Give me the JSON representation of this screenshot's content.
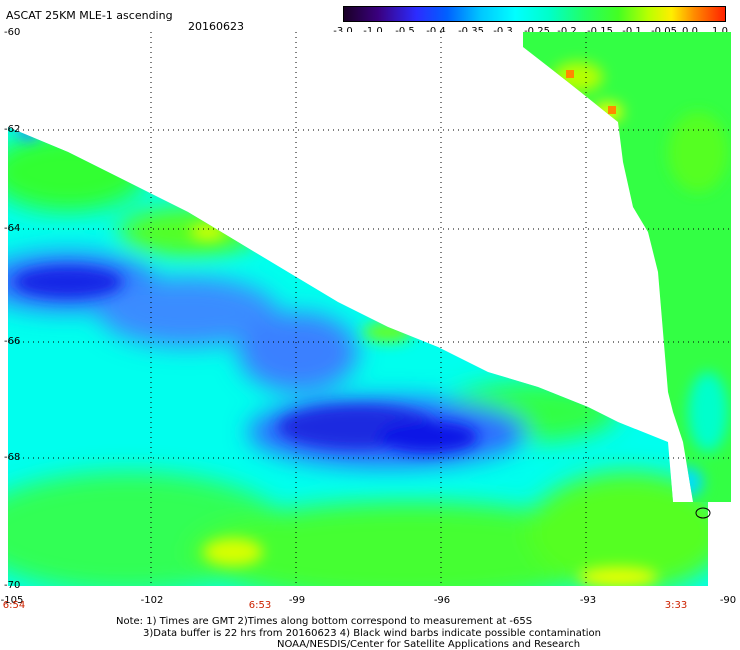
{
  "header": {
    "title": "ASCAT 25KM MLE-1 ascending",
    "date": "20160623"
  },
  "colorbar": {
    "labels": [
      "-3.0",
      "-1.0",
      "-0.5",
      "-0.4",
      "-0.35",
      "-0.3",
      "-0.25",
      "-0.2",
      "-0.15",
      "-0.1",
      "-0.05",
      "0.0",
      "1.0"
    ]
  },
  "axes": {
    "lat_labels": [
      "-60",
      "-62",
      "-64",
      "-66",
      "-68",
      "-70"
    ],
    "lon_labels": [
      "-105",
      "-102",
      "-99",
      "-96",
      "-93",
      "-90"
    ],
    "time_labels": [
      "6:54",
      "6:53",
      "3:33"
    ]
  },
  "notes": {
    "line1": "Note: 1) Times are GMT 2)Times along bottom correspond to measurement at -65S",
    "line2": "3)Data buffer is 22 hrs from 20160623 4) Black wind barbs indicate possible contamination",
    "line3": "NOAA/NESDIS/Center for Satellite Applications and Research"
  },
  "colors": {
    "deep_blue": "#0a14e6",
    "blue": "#2f6bff",
    "cyan": "#00ffff",
    "green": "#22ff44",
    "yellow": "#e8ff00",
    "orange": "#ff8800"
  }
}
